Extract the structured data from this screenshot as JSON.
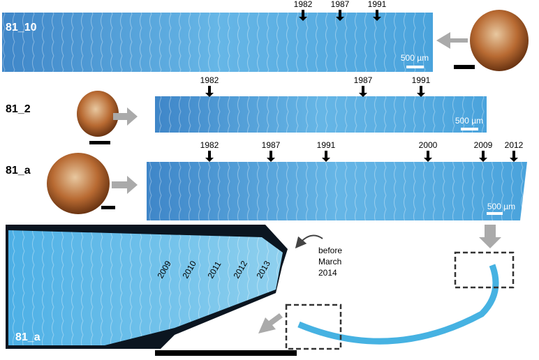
{
  "panels": [
    {
      "label": "81_10",
      "years": [
        "1982",
        "1987",
        "1991"
      ],
      "scale_bar": "500 µm"
    },
    {
      "label": "81_2",
      "years": [
        "1982",
        "1987",
        "1991"
      ],
      "scale_bar": "500 µm"
    },
    {
      "label": "81_a",
      "years": [
        "1982",
        "1987",
        "1991",
        "2000",
        "2009",
        "2012"
      ],
      "scale_bar": "500 µm"
    }
  ],
  "detail": {
    "label": "81_a",
    "years": [
      "2009",
      "2010",
      "2011",
      "2012",
      "2013"
    ],
    "annotation": [
      "before",
      "March",
      "2014"
    ]
  }
}
